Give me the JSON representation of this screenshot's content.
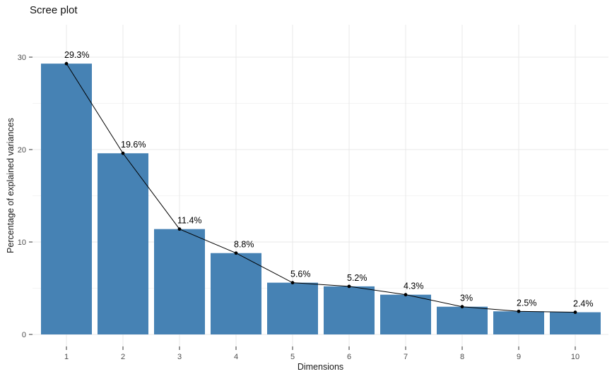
{
  "chart_data": {
    "type": "bar",
    "subtype": "bar-with-line-overlay",
    "title": "Scree plot",
    "xlabel": "Dimensions",
    "ylabel": "Percentage of explained variances",
    "categories": [
      "1",
      "2",
      "3",
      "4",
      "5",
      "6",
      "7",
      "8",
      "9",
      "10"
    ],
    "values": [
      29.3,
      19.6,
      11.4,
      8.8,
      5.6,
      5.2,
      4.3,
      3,
      2.5,
      2.4
    ],
    "point_labels": [
      "29.3%",
      "19.6%",
      "11.4%",
      "8.8%",
      "5.6%",
      "5.2%",
      "4.3%",
      "3%",
      "2.5%",
      "2.4%"
    ],
    "yticks": [
      0,
      10,
      20,
      30
    ],
    "ylim": [
      0,
      32.3
    ],
    "grid": "major-and-minor",
    "legend": "none",
    "colors": {
      "bar": "#4682B4",
      "line": "#000000",
      "point": "#000000",
      "label": "#000000",
      "grid_major": "#e9e9e9",
      "grid_minor": "#f4f4f4",
      "tick": "#333333",
      "axis_text": "#4d4d4d",
      "background": "#ffffff"
    }
  }
}
